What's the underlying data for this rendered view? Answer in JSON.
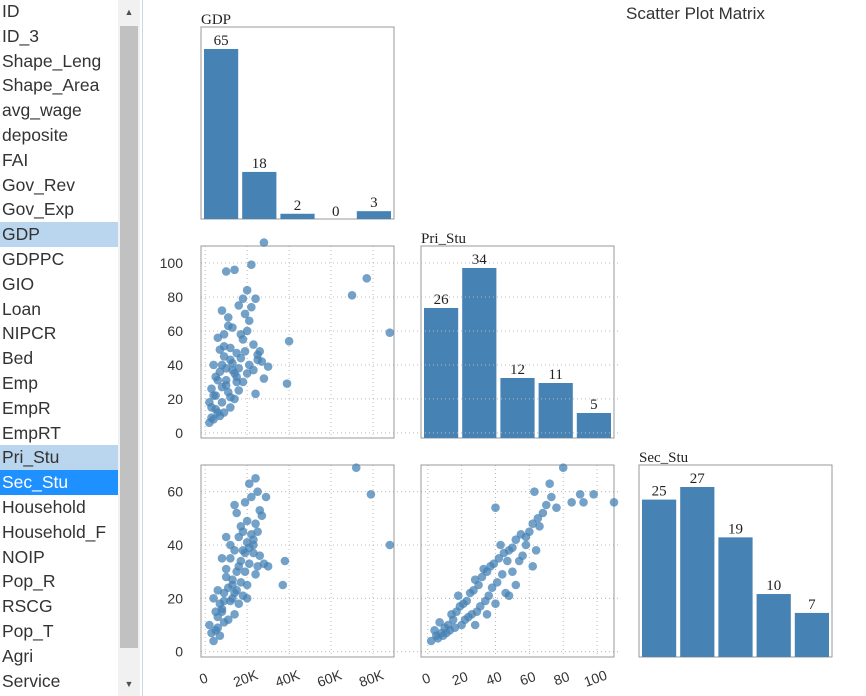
{
  "variable_list": {
    "items": [
      "ID",
      "ID_3",
      "Shape_Leng",
      "Shape_Area",
      "avg_wage",
      "deposite",
      "FAI",
      "Gov_Rev",
      "Gov_Exp",
      "GDP",
      "GDPPC",
      "GIO",
      "Loan",
      "NIPCR",
      "Bed",
      "Emp",
      "EmpR",
      "EmpRT",
      "Pri_Stu",
      "Sec_Stu",
      "Household",
      "Household_F",
      "NOIP",
      "Pop_R",
      "RSCG",
      "Pop_T",
      "Agri",
      "Service"
    ],
    "selected": [
      "GDP",
      "Pri_Stu",
      "Sec_Stu"
    ],
    "active": "Sec_Stu",
    "highlight_color": "#bad6ee",
    "active_color": "#1e90ff"
  },
  "matrix": {
    "title": "Scatter Plot Matrix",
    "accent_color": "#4682b4"
  },
  "chart_data": [
    {
      "type": "bar",
      "title": "GDP",
      "variable": "GDP",
      "values": [
        65,
        18,
        2,
        0,
        3
      ],
      "ylim": [
        0,
        65
      ]
    },
    {
      "type": "bar",
      "title": "Pri_Stu",
      "variable": "Pri_Stu",
      "values": [
        26,
        34,
        12,
        11,
        5
      ],
      "ylim": [
        0,
        34
      ]
    },
    {
      "type": "bar",
      "title": "Sec_Stu",
      "variable": "Sec_Stu",
      "values": [
        25,
        27,
        19,
        10,
        7
      ],
      "ylim": [
        0,
        27
      ]
    },
    {
      "type": "scatter",
      "x_variable": "GDP",
      "y_variable": "Pri_Stu",
      "xlim": [
        -2000,
        90000
      ],
      "ylim": [
        -3,
        110
      ],
      "grid": true,
      "x_ticks": [],
      "y_ticks": [
        "0",
        "20",
        "40",
        "60",
        "80",
        "100"
      ],
      "points": [
        [
          28000,
          112
        ],
        [
          70000,
          81
        ],
        [
          77000,
          91
        ],
        [
          88000,
          59
        ],
        [
          40000,
          54
        ],
        [
          39000,
          29
        ],
        [
          24000,
          23
        ],
        [
          3000,
          9
        ],
        [
          6000,
          12
        ],
        [
          2000,
          18
        ],
        [
          5000,
          22
        ],
        [
          8000,
          27
        ],
        [
          10000,
          31
        ],
        [
          7000,
          36
        ],
        [
          4000,
          40
        ],
        [
          12000,
          43
        ],
        [
          15000,
          47
        ],
        [
          9000,
          51
        ],
        [
          6000,
          56
        ],
        [
          13000,
          62
        ],
        [
          11000,
          68
        ],
        [
          8000,
          72
        ],
        [
          18000,
          79
        ],
        [
          20000,
          84
        ],
        [
          22000,
          99
        ],
        [
          14000,
          96
        ],
        [
          10000,
          95
        ],
        [
          16000,
          75
        ],
        [
          19000,
          70
        ],
        [
          21000,
          66
        ],
        [
          17000,
          58
        ],
        [
          23000,
          52
        ],
        [
          25000,
          46
        ],
        [
          27000,
          42
        ],
        [
          30000,
          39
        ],
        [
          20000,
          35
        ],
        [
          18000,
          30
        ],
        [
          16000,
          25
        ],
        [
          14000,
          20
        ],
        [
          12000,
          15
        ],
        [
          9000,
          12
        ],
        [
          7000,
          10
        ],
        [
          5000,
          14
        ],
        [
          3000,
          26
        ],
        [
          11000,
          24
        ],
        [
          13000,
          37
        ],
        [
          15000,
          33
        ],
        [
          17000,
          44
        ],
        [
          19000,
          48
        ],
        [
          21000,
          40
        ],
        [
          23000,
          37
        ],
        [
          25000,
          43
        ],
        [
          9000,
          45
        ],
        [
          8000,
          18
        ],
        [
          6000,
          31
        ],
        [
          4000,
          8
        ],
        [
          2000,
          6
        ],
        [
          10000,
          28
        ],
        [
          12000,
          21
        ],
        [
          14000,
          35
        ],
        [
          16000,
          38
        ],
        [
          18000,
          55
        ],
        [
          20000,
          60
        ],
        [
          22000,
          74
        ],
        [
          24000,
          79
        ],
        [
          11000,
          63
        ],
        [
          9000,
          58
        ],
        [
          7000,
          49
        ],
        [
          13000,
          41
        ],
        [
          15000,
          30
        ],
        [
          5000,
          33
        ],
        [
          3000,
          15
        ],
        [
          26000,
          48
        ],
        [
          28000,
          32
        ],
        [
          4000,
          22
        ],
        [
          8000,
          40
        ],
        [
          10000,
          38
        ],
        [
          12000,
          50
        ]
      ]
    },
    {
      "type": "scatter",
      "x_variable": "GDP",
      "y_variable": "Sec_Stu",
      "xlim": [
        -2000,
        90000
      ],
      "ylim": [
        -2,
        70
      ],
      "grid": true,
      "x_ticks": [
        "0",
        "20K",
        "40K",
        "60K",
        "80K"
      ],
      "y_ticks": [
        "0",
        "20",
        "40",
        "60"
      ],
      "points": [
        [
          72000,
          69
        ],
        [
          79000,
          59
        ],
        [
          88000,
          40
        ],
        [
          24000,
          65
        ],
        [
          29000,
          58
        ],
        [
          38000,
          34
        ],
        [
          37000,
          25
        ],
        [
          3000,
          7
        ],
        [
          5000,
          8
        ],
        [
          2000,
          10
        ],
        [
          6000,
          13
        ],
        [
          8000,
          15
        ],
        [
          7000,
          18
        ],
        [
          4000,
          20
        ],
        [
          9000,
          22
        ],
        [
          11000,
          24
        ],
        [
          13000,
          27
        ],
        [
          10000,
          31
        ],
        [
          12000,
          35
        ],
        [
          14000,
          38
        ],
        [
          16000,
          43
        ],
        [
          18000,
          45
        ],
        [
          20000,
          49
        ],
        [
          15000,
          52
        ],
        [
          19000,
          56
        ],
        [
          22000,
          58
        ],
        [
          25000,
          60
        ],
        [
          21000,
          63
        ],
        [
          17000,
          47
        ],
        [
          23000,
          40
        ],
        [
          26000,
          36
        ],
        [
          28000,
          33
        ],
        [
          24000,
          29
        ],
        [
          20000,
          25
        ],
        [
          18000,
          21
        ],
        [
          16000,
          18
        ],
        [
          14000,
          14
        ],
        [
          9000,
          11
        ],
        [
          6000,
          9
        ],
        [
          4000,
          4
        ],
        [
          13000,
          20
        ],
        [
          15000,
          23
        ],
        [
          17000,
          26
        ],
        [
          19000,
          30
        ],
        [
          21000,
          33
        ],
        [
          23000,
          37
        ],
        [
          10000,
          28
        ],
        [
          8000,
          16
        ],
        [
          12000,
          19
        ],
        [
          14000,
          22
        ],
        [
          16000,
          32
        ],
        [
          18000,
          38
        ],
        [
          20000,
          41
        ],
        [
          22000,
          44
        ],
        [
          24000,
          48
        ],
        [
          26000,
          53
        ],
        [
          11000,
          12
        ],
        [
          7000,
          6
        ],
        [
          5000,
          15
        ],
        [
          9000,
          19
        ],
        [
          13000,
          25
        ],
        [
          15000,
          30
        ],
        [
          17000,
          34
        ],
        [
          19000,
          37
        ],
        [
          21000,
          39
        ],
        [
          23000,
          42
        ],
        [
          25000,
          45
        ],
        [
          27000,
          51
        ],
        [
          10000,
          43
        ],
        [
          12000,
          40
        ],
        [
          14000,
          55
        ],
        [
          8000,
          35
        ],
        [
          6000,
          23
        ],
        [
          30000,
          32
        ],
        [
          20000,
          20
        ],
        [
          25000,
          32
        ]
      ]
    },
    {
      "type": "scatter",
      "x_variable": "Pri_Stu",
      "y_variable": "Sec_Stu",
      "xlim": [
        -4,
        110
      ],
      "ylim": [
        -2,
        70
      ],
      "grid": true,
      "x_ticks": [
        "0",
        "20",
        "40",
        "60",
        "80",
        "100"
      ],
      "y_ticks": [],
      "points": [
        [
          80,
          69
        ],
        [
          72,
          63
        ],
        [
          63,
          60
        ],
        [
          90,
          59
        ],
        [
          98,
          59
        ],
        [
          85,
          56
        ],
        [
          110,
          56
        ],
        [
          92,
          56
        ],
        [
          76,
          54
        ],
        [
          40,
          54
        ],
        [
          2,
          4
        ],
        [
          5,
          6
        ],
        [
          8,
          7
        ],
        [
          4,
          8
        ],
        [
          10,
          9
        ],
        [
          12,
          10
        ],
        [
          7,
          11
        ],
        [
          15,
          12
        ],
        [
          14,
          14
        ],
        [
          17,
          15
        ],
        [
          19,
          17
        ],
        [
          21,
          18
        ],
        [
          23,
          19
        ],
        [
          18,
          21
        ],
        [
          25,
          22
        ],
        [
          27,
          23
        ],
        [
          30,
          25
        ],
        [
          28,
          27
        ],
        [
          32,
          28
        ],
        [
          35,
          30
        ],
        [
          33,
          31
        ],
        [
          37,
          32
        ],
        [
          39,
          33
        ],
        [
          42,
          35
        ],
        [
          45,
          37
        ],
        [
          48,
          38
        ],
        [
          43,
          40
        ],
        [
          52,
          42
        ],
        [
          55,
          44
        ],
        [
          58,
          43
        ],
        [
          60,
          45
        ],
        [
          50,
          39
        ],
        [
          47,
          34
        ],
        [
          44,
          29
        ],
        [
          41,
          26
        ],
        [
          38,
          24
        ],
        [
          36,
          21
        ],
        [
          34,
          19
        ],
        [
          31,
          17
        ],
        [
          29,
          15
        ],
        [
          26,
          14
        ],
        [
          24,
          13
        ],
        [
          22,
          12
        ],
        [
          20,
          10
        ],
        [
          16,
          9
        ],
        [
          13,
          8
        ],
        [
          11,
          7
        ],
        [
          9,
          6
        ],
        [
          6,
          5
        ],
        [
          62,
          48
        ],
        [
          65,
          50
        ],
        [
          68,
          52
        ],
        [
          70,
          55
        ],
        [
          66,
          47
        ],
        [
          58,
          40
        ],
        [
          54,
          34
        ],
        [
          50,
          30
        ],
        [
          46,
          22
        ],
        [
          40,
          18
        ],
        [
          35,
          14
        ],
        [
          28,
          10
        ],
        [
          64,
          38
        ],
        [
          56,
          36
        ],
        [
          73,
          58
        ],
        [
          48,
          21
        ],
        [
          62,
          32
        ],
        [
          52,
          25
        ]
      ]
    }
  ]
}
